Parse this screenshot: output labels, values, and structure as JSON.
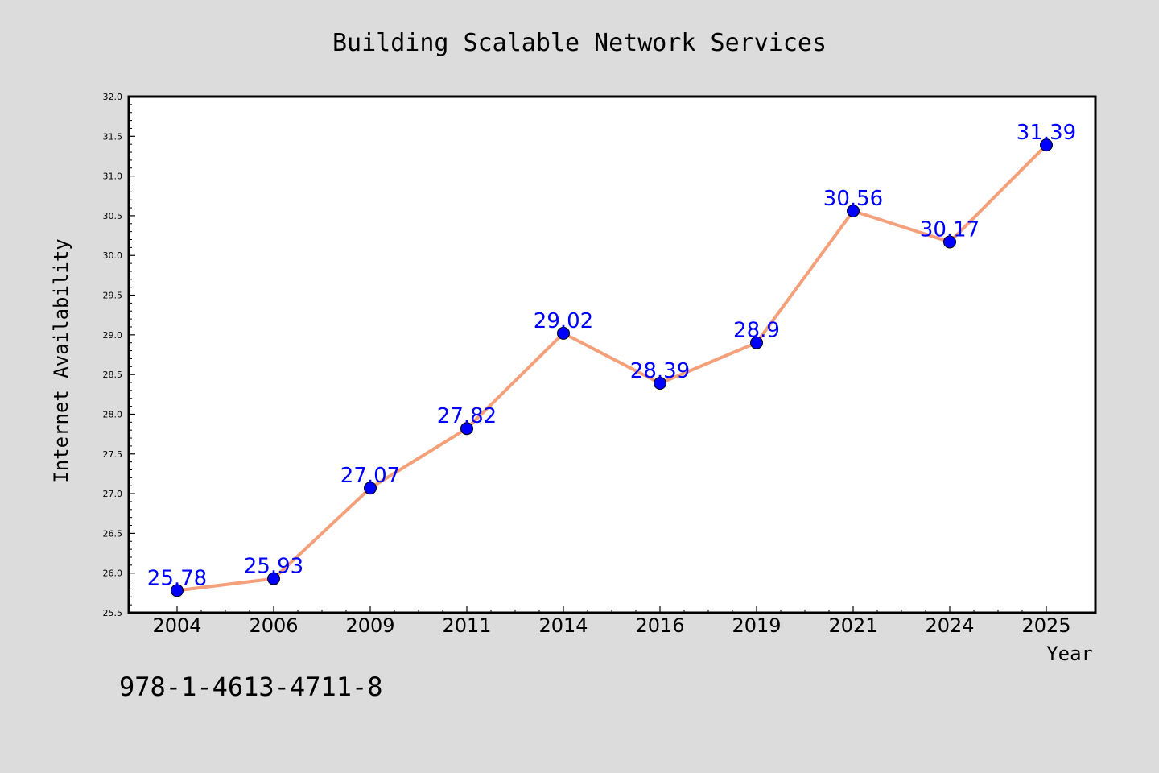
{
  "chart_data": {
    "type": "line",
    "title": "Building Scalable Network Services",
    "xlabel": "Year",
    "ylabel": "Internet Availability",
    "categories": [
      "2004",
      "2006",
      "2009",
      "2011",
      "2014",
      "2016",
      "2019",
      "2021",
      "2024",
      "2025"
    ],
    "series": [
      {
        "values": [
          25.78,
          25.93,
          27.07,
          27.82,
          29.02,
          28.39,
          28.9,
          30.56,
          30.17,
          31.39
        ],
        "point_labels": [
          "25.78",
          "25.93",
          "27.07",
          "27.82",
          "29.02",
          "28.39",
          "28.9",
          "30.56",
          "30.17",
          "31.39"
        ]
      }
    ],
    "ylim": [
      25.5,
      32.0
    ],
    "yticks": [
      "25.5",
      "26.0",
      "26.5",
      "27.0",
      "27.5",
      "28.0",
      "28.5",
      "29.0",
      "29.5",
      "30.0",
      "30.5",
      "31.0",
      "31.5",
      "32.0"
    ],
    "grid": false,
    "legend": "none",
    "colors": {
      "line": "#f4a07a",
      "marker": "#0000ff",
      "data_label": "#0000ff",
      "figure_background": "#dcdcdc",
      "plot_background": "#ffffff"
    }
  },
  "footer": {
    "isbn": "978-1-4613-4711-8"
  }
}
